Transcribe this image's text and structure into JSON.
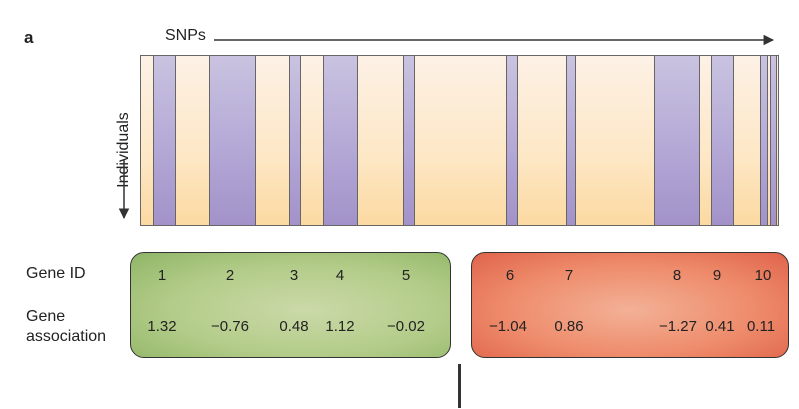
{
  "panel_label": "a",
  "snps_label": "SNPs",
  "individuals_label": "Individuals",
  "gene_id_label": "Gene ID",
  "gene_association_label_line1": "Gene",
  "gene_association_label_line2": "association",
  "colors": {
    "positive_group": "#b3cc89",
    "negative_group": "#ee8c6c",
    "snp_highlight": "#b4a8d6",
    "background_gradient": "#fde7c5"
  },
  "genes": [
    {
      "id": "1",
      "association": "1.32"
    },
    {
      "id": "2",
      "association": "−0.76"
    },
    {
      "id": "3",
      "association": "0.48"
    },
    {
      "id": "4",
      "association": "1.12"
    },
    {
      "id": "5",
      "association": "−0.02"
    },
    {
      "id": "6",
      "association": "−1.04"
    },
    {
      "id": "7",
      "association": "0.86"
    },
    {
      "id": "8",
      "association": "−1.27"
    },
    {
      "id": "9",
      "association": "0.41"
    },
    {
      "id": "10",
      "association": "0.11"
    }
  ]
}
